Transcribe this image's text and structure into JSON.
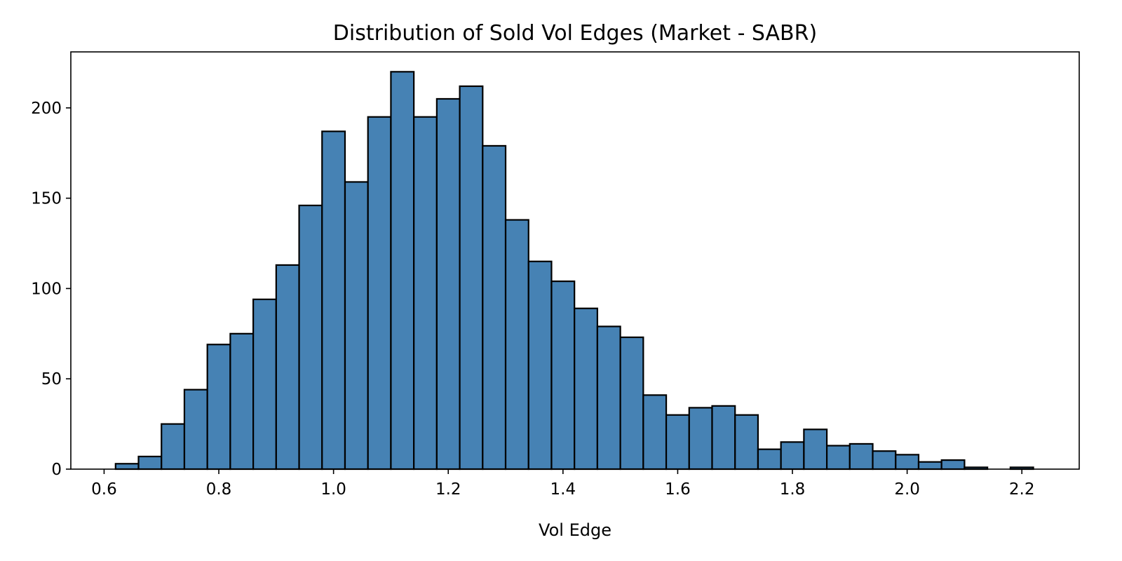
{
  "chart_data": {
    "type": "bar",
    "title": "Distribution of Sold Vol Edges (Market - SABR)",
    "xlabel": "Vol Edge",
    "ylabel": "",
    "xlim": [
      0.542,
      2.3
    ],
    "ylim": [
      0,
      231
    ],
    "grid": false,
    "legend": "none",
    "bar_color": "#4682b4",
    "edge_color": "#000000",
    "x_ticks": [
      0.6,
      0.8,
      1.0,
      1.2,
      1.4,
      1.6,
      1.8,
      2.0,
      2.2
    ],
    "x_tick_labels": [
      "0.6",
      "0.8",
      "1.0",
      "1.2",
      "1.4",
      "1.6",
      "1.8",
      "2.0",
      "2.2"
    ],
    "y_ticks": [
      0,
      50,
      100,
      150,
      200
    ],
    "y_tick_labels": [
      "0",
      "50",
      "100",
      "150",
      "200"
    ],
    "bin_edges": [
      0.62,
      0.66,
      0.7,
      0.74,
      0.78,
      0.82,
      0.86,
      0.9,
      0.94,
      0.98,
      1.02,
      1.06,
      1.1,
      1.14,
      1.18,
      1.22,
      1.26,
      1.3,
      1.34,
      1.38,
      1.42,
      1.46,
      1.5,
      1.54,
      1.58,
      1.62,
      1.66,
      1.7,
      1.74,
      1.78,
      1.82,
      1.86,
      1.9,
      1.94,
      1.98,
      2.02,
      2.06,
      2.1,
      2.14,
      2.18,
      2.22
    ],
    "counts": [
      3,
      7,
      25,
      44,
      69,
      75,
      94,
      113,
      146,
      187,
      159,
      195,
      220,
      195,
      205,
      212,
      179,
      138,
      115,
      104,
      89,
      79,
      73,
      41,
      30,
      34,
      35,
      30,
      11,
      15,
      22,
      13,
      14,
      10,
      8,
      4,
      5,
      1,
      0,
      1
    ]
  }
}
